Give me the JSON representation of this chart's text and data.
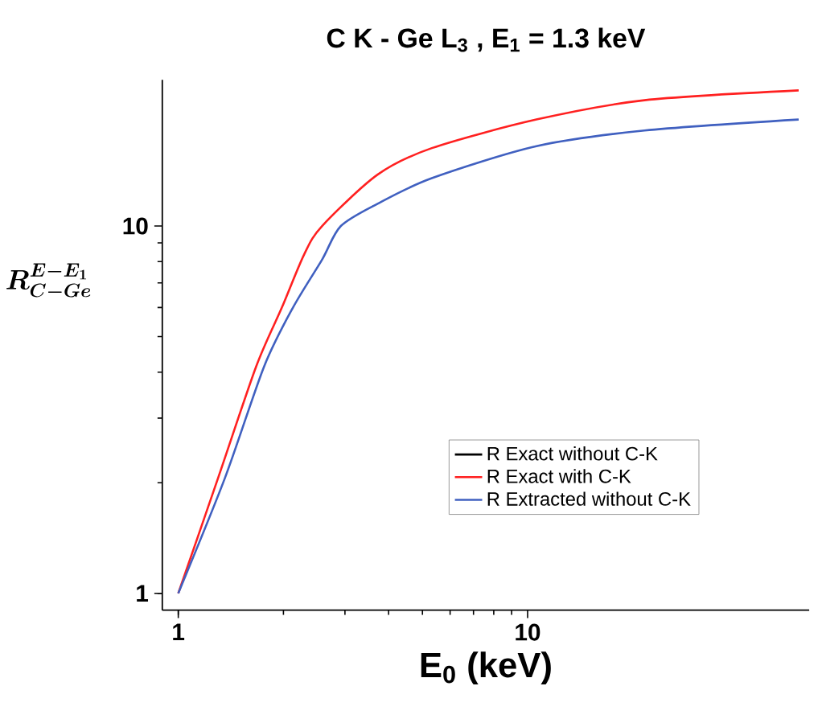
{
  "chart_data": {
    "type": "line",
    "title": "C K - Ge L$_{3}$ , E$_{1}$ = 1.3 keV",
    "xlabel": "E$_{0}$ (keV)",
    "ylabel": "R^{E-E_1}_{C-Ge}",
    "log": "xy",
    "xlim": [
      0.9,
      64
    ],
    "ylim": [
      0.9,
      25
    ],
    "xticks": [
      1,
      10
    ],
    "yticks": [
      1,
      10
    ],
    "grid": false,
    "legend": "bottom right",
    "marker": "none",
    "line_style": "solid",
    "series": [
      {
        "name": "R Exact without C-K",
        "color": "#000000"
      },
      {
        "name": "R Exact with C-K",
        "color": "#ff2020",
        "x": [
          1,
          1.3,
          1.67,
          1.98,
          2.29,
          2.58,
          3.72,
          5.32,
          10.6,
          21.6,
          59.7
        ],
        "values": [
          1,
          2.06,
          4.14,
          6.0,
          8.35,
          10,
          13.8,
          16.3,
          19.5,
          22.0,
          23.4
        ]
      },
      {
        "name": "R Extracted  without C-K",
        "color": "#4060c0",
        "x": [
          1,
          1.36,
          1.76,
          2.13,
          2.58,
          2.92,
          3.72,
          5.32,
          10.6,
          21.6,
          59.7
        ],
        "values": [
          1,
          2.06,
          4.14,
          6.0,
          8.1,
          10,
          11.5,
          13.5,
          16.5,
          18.2,
          19.5
        ]
      }
    ]
  }
}
